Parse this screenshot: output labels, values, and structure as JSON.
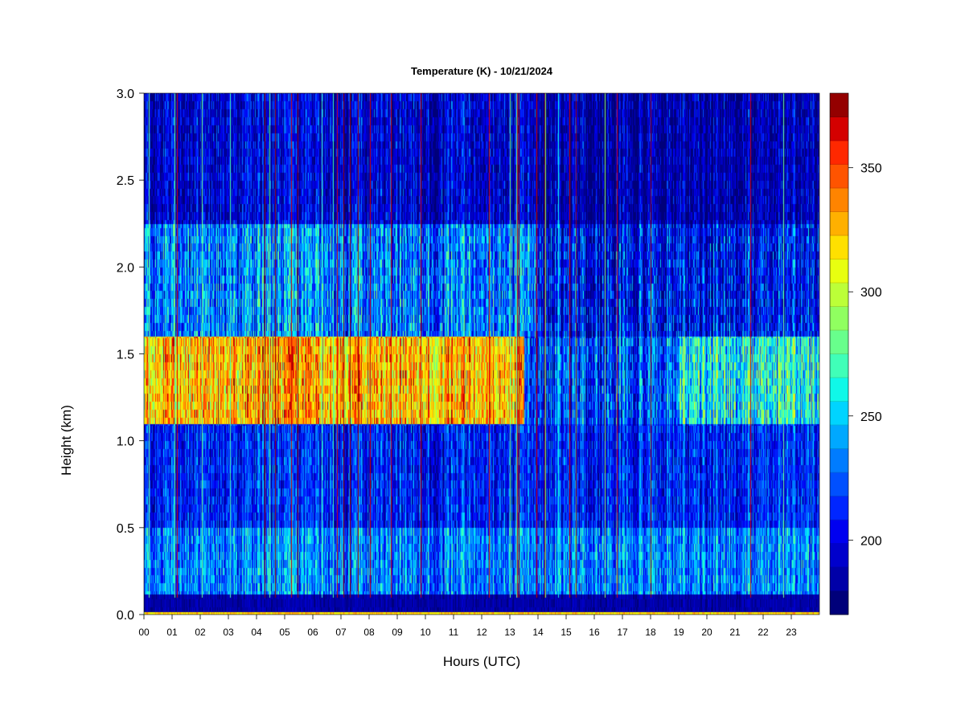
{
  "chart_data": {
    "type": "heatmap",
    "title": "Temperature (K) - 10/21/2024",
    "xlabel": "Hours (UTC)",
    "ylabel": "Height (km)",
    "x_ticks": [
      "00",
      "01",
      "02",
      "03",
      "04",
      "05",
      "06",
      "07",
      "08",
      "09",
      "10",
      "11",
      "12",
      "13",
      "14",
      "15",
      "16",
      "17",
      "18",
      "19",
      "20",
      "21",
      "22",
      "23"
    ],
    "x_range": [
      0,
      24
    ],
    "y_ticks": [
      "0.0",
      "0.5",
      "1.0",
      "1.5",
      "2.0",
      "2.5",
      "3.0"
    ],
    "y_range": [
      0,
      3.0
    ],
    "colorbar": {
      "range": [
        170,
        380
      ],
      "ticks": [
        "200",
        "250",
        "300",
        "350"
      ],
      "tick_values": [
        200,
        250,
        300,
        350
      ],
      "levels": 21,
      "colors": [
        "#00007a",
        "#0000a8",
        "#0000cc",
        "#0000f0",
        "#0026ff",
        "#0050ff",
        "#007cff",
        "#00a8ff",
        "#00d4ff",
        "#10f8e8",
        "#40ffb8",
        "#68ff8c",
        "#90ff60",
        "#bcff38",
        "#e8ff10",
        "#ffe000",
        "#ffb000",
        "#ff8400",
        "#ff5400",
        "#ff2800",
        "#d40000",
        "#940000"
      ]
    },
    "bands": [
      {
        "height_range": [
          0.0,
          0.02
        ],
        "dominant": "yellow-orange"
      },
      {
        "height_range": [
          0.02,
          0.12
        ],
        "dominant": "dark blue"
      },
      {
        "height_range": [
          0.12,
          0.5
        ],
        "dominant": "blue with cyan and yellow streaks"
      },
      {
        "height_range": [
          0.5,
          1.1
        ],
        "dominant": "blue"
      },
      {
        "height_range": [
          1.1,
          1.6
        ],
        "dominant": "red and yellow from 00 to 13 UTC, blue after"
      },
      {
        "height_range": [
          1.6,
          2.25
        ],
        "dominant": "blue with yellow streaks"
      },
      {
        "height_range": [
          2.25,
          3.0
        ],
        "dominant": "dark blue"
      }
    ]
  }
}
